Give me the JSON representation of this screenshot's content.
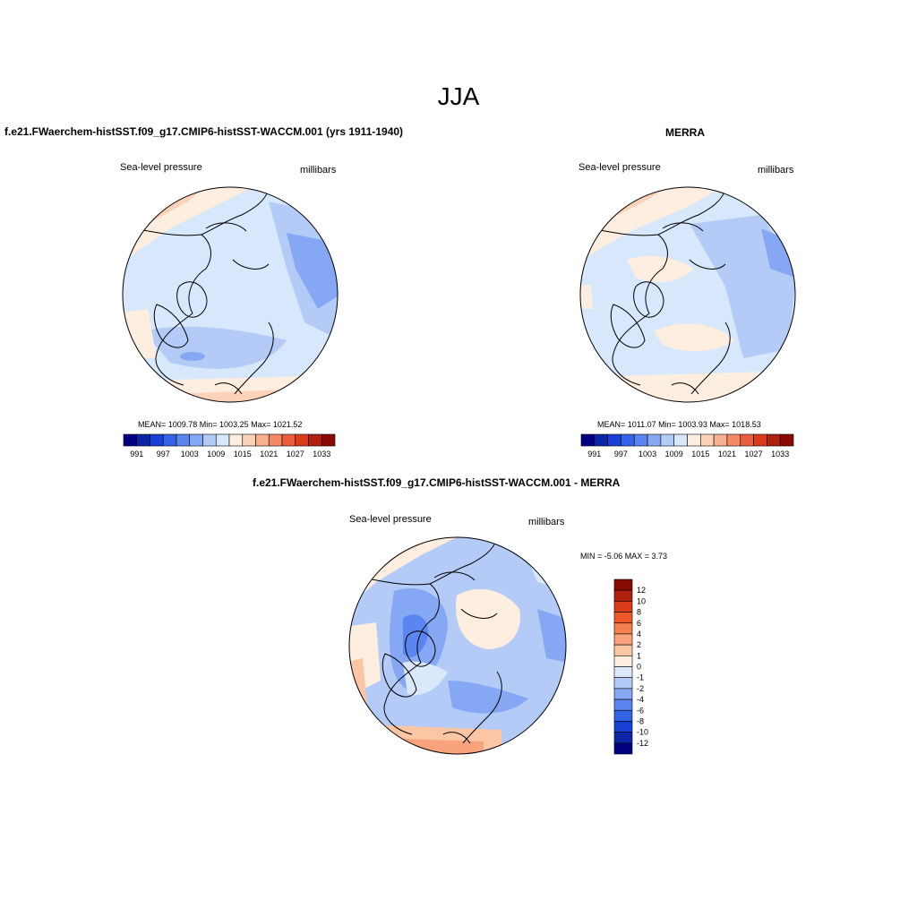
{
  "page_title": "JJA",
  "panels": [
    {
      "title": "f.e21.FWaerchem-histSST.f09_g17.CMIP6-histSST-WACCM.001 (yrs 1911-1940)",
      "variable": "Sea-level pressure",
      "units": "millibars",
      "stats": "MEAN= 1009.78  Min= 1003.25  Max= 1021.52"
    },
    {
      "title": "MERRA",
      "variable": "Sea-level pressure",
      "units": "millibars",
      "stats": "MEAN= 1011.07  Min= 1003.93  Max= 1018.53"
    },
    {
      "title": "f.e21.FWaerchem-histSST.f09_g17.CMIP6-histSST-WACCM.001 - MERRA",
      "variable": "Sea-level pressure",
      "units": "millibars",
      "stats": "MIN =  -5.06 MAX =   3.73"
    }
  ],
  "abs_colorbar": {
    "colors": [
      "#000080",
      "#0b24a8",
      "#1a3fd6",
      "#3563e8",
      "#5b86f0",
      "#86a8f4",
      "#b4cbf8",
      "#d8e8fc",
      "#fdeee0",
      "#fcd2b9",
      "#f9b090",
      "#f38a64",
      "#ea5f3a",
      "#d93b1b",
      "#b0200c",
      "#8a0a04"
    ],
    "tick_labels": [
      "991",
      "997",
      "1003",
      "1009",
      "1015",
      "1021",
      "1027",
      "1033"
    ]
  },
  "diff_colorbar": {
    "colors": [
      "#000080",
      "#0b24a8",
      "#1a3fd6",
      "#3563e8",
      "#5b86f0",
      "#86a8f4",
      "#b4cbf8",
      "#dbe7fb",
      "#fdeee0",
      "#fcc5a4",
      "#f9a37c",
      "#f58050",
      "#f0582c",
      "#d93b1b",
      "#b0200c",
      "#8a0a04"
    ],
    "tick_labels": [
      "-12",
      "-10",
      "-8",
      "-6",
      "-4",
      "-2",
      "-1",
      "0",
      "1",
      "2",
      "4",
      "6",
      "8",
      "10",
      "12"
    ]
  }
}
